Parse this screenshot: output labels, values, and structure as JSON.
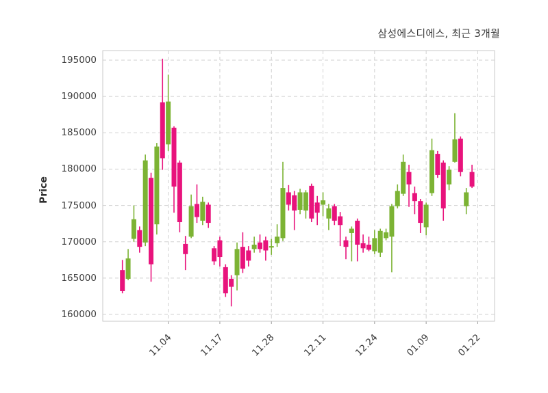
{
  "title": "삼성에스디에스, 최근 3개월",
  "colors": {
    "up": "#7cb334",
    "down": "#e8137c",
    "grid": "#d0d0d0",
    "frame": "#c9c9c9",
    "text": "#3c3c3c"
  },
  "chart_data": {
    "type": "candlestick",
    "title": "삼성에스디에스, 최근 3개월",
    "ylabel": "Price",
    "xlabel": "",
    "y_ticks": [
      160000,
      165000,
      170000,
      175000,
      180000,
      185000,
      190000,
      195000
    ],
    "ylim": [
      159000,
      196300
    ],
    "grid": true,
    "x_ticks": [
      {
        "label": "11.04",
        "index": 8
      },
      {
        "label": "11.17",
        "index": 17
      },
      {
        "label": "11.28",
        "index": 26
      },
      {
        "label": "12.11",
        "index": 35
      },
      {
        "label": "12.24",
        "index": 44
      },
      {
        "label": "01.09",
        "index": 53
      },
      {
        "label": "01.22",
        "index": 62
      }
    ],
    "ohlc_legend": "arrays are [open, high, low, close] in KRW; close >= open renders green (up), otherwise pink (down)",
    "candles": [
      [
        166100,
        167500,
        162900,
        163200
      ],
      [
        164900,
        169000,
        164700,
        167700
      ],
      [
        170400,
        175000,
        170000,
        173100
      ],
      [
        171600,
        172100,
        168500,
        169300
      ],
      [
        169900,
        182000,
        169400,
        181200
      ],
      [
        178800,
        179500,
        164500,
        166900
      ],
      [
        172400,
        183600,
        171000,
        183100
      ],
      [
        189200,
        195200,
        179900,
        181500
      ],
      [
        183400,
        193000,
        182500,
        189300
      ],
      [
        185700,
        185900,
        174000,
        177600
      ],
      [
        180900,
        181200,
        171300,
        172700
      ],
      [
        169700,
        170800,
        166100,
        168300
      ],
      [
        170700,
        176500,
        170500,
        174900
      ],
      [
        175200,
        177900,
        172600,
        173400
      ],
      [
        172900,
        176200,
        172300,
        175500
      ],
      [
        175100,
        175400,
        171900,
        172600
      ],
      [
        169100,
        169400,
        166800,
        167300
      ],
      [
        170200,
        170700,
        166600,
        167900
      ],
      [
        166500,
        166900,
        162400,
        162900
      ],
      [
        164900,
        165400,
        161100,
        163800
      ],
      [
        165400,
        169900,
        163300,
        169000
      ],
      [
        169300,
        171300,
        165700,
        166300
      ],
      [
        168800,
        169400,
        166600,
        167400
      ],
      [
        169000,
        170700,
        168500,
        169600
      ],
      [
        169900,
        171000,
        168500,
        169000
      ],
      [
        170200,
        170700,
        167400,
        168800
      ],
      [
        169200,
        170400,
        168200,
        169400
      ],
      [
        169800,
        172400,
        169300,
        170700
      ],
      [
        170500,
        181000,
        170100,
        177400
      ],
      [
        176800,
        177800,
        174300,
        175100
      ],
      [
        176400,
        177000,
        171600,
        174300
      ],
      [
        174400,
        177300,
        173800,
        176800
      ],
      [
        174300,
        177100,
        173200,
        176800
      ],
      [
        177700,
        178000,
        172700,
        173200
      ],
      [
        175400,
        176300,
        172300,
        174000
      ],
      [
        175100,
        176800,
        173500,
        175700
      ],
      [
        173200,
        175200,
        171600,
        174600
      ],
      [
        174900,
        175200,
        172300,
        172900
      ],
      [
        173500,
        174100,
        169400,
        172300
      ],
      [
        170200,
        170700,
        167600,
        169300
      ],
      [
        171200,
        172100,
        167300,
        171800
      ],
      [
        172900,
        173200,
        167300,
        169600
      ],
      [
        169800,
        171000,
        168500,
        169100
      ],
      [
        169600,
        170700,
        168700,
        168900
      ],
      [
        168700,
        171600,
        168300,
        170500
      ],
      [
        168500,
        171800,
        167900,
        171500
      ],
      [
        170500,
        171800,
        170200,
        171300
      ],
      [
        170700,
        175200,
        165800,
        174900
      ],
      [
        174900,
        177900,
        174600,
        177000
      ],
      [
        176600,
        182000,
        176300,
        181000
      ],
      [
        179600,
        180600,
        174800,
        177900
      ],
      [
        176700,
        177600,
        173800,
        175600
      ],
      [
        175600,
        175900,
        171200,
        172600
      ],
      [
        172000,
        175400,
        170900,
        175100
      ],
      [
        176700,
        184200,
        176300,
        182600
      ],
      [
        182100,
        182500,
        178800,
        179200
      ],
      [
        180900,
        181200,
        172900,
        174600
      ],
      [
        177900,
        180400,
        177100,
        179900
      ],
      [
        181000,
        187700,
        180900,
        184100
      ],
      [
        184200,
        184500,
        179000,
        179600
      ],
      [
        174900,
        177400,
        173800,
        176800
      ],
      [
        179600,
        180600,
        177400,
        177600
      ]
    ]
  }
}
